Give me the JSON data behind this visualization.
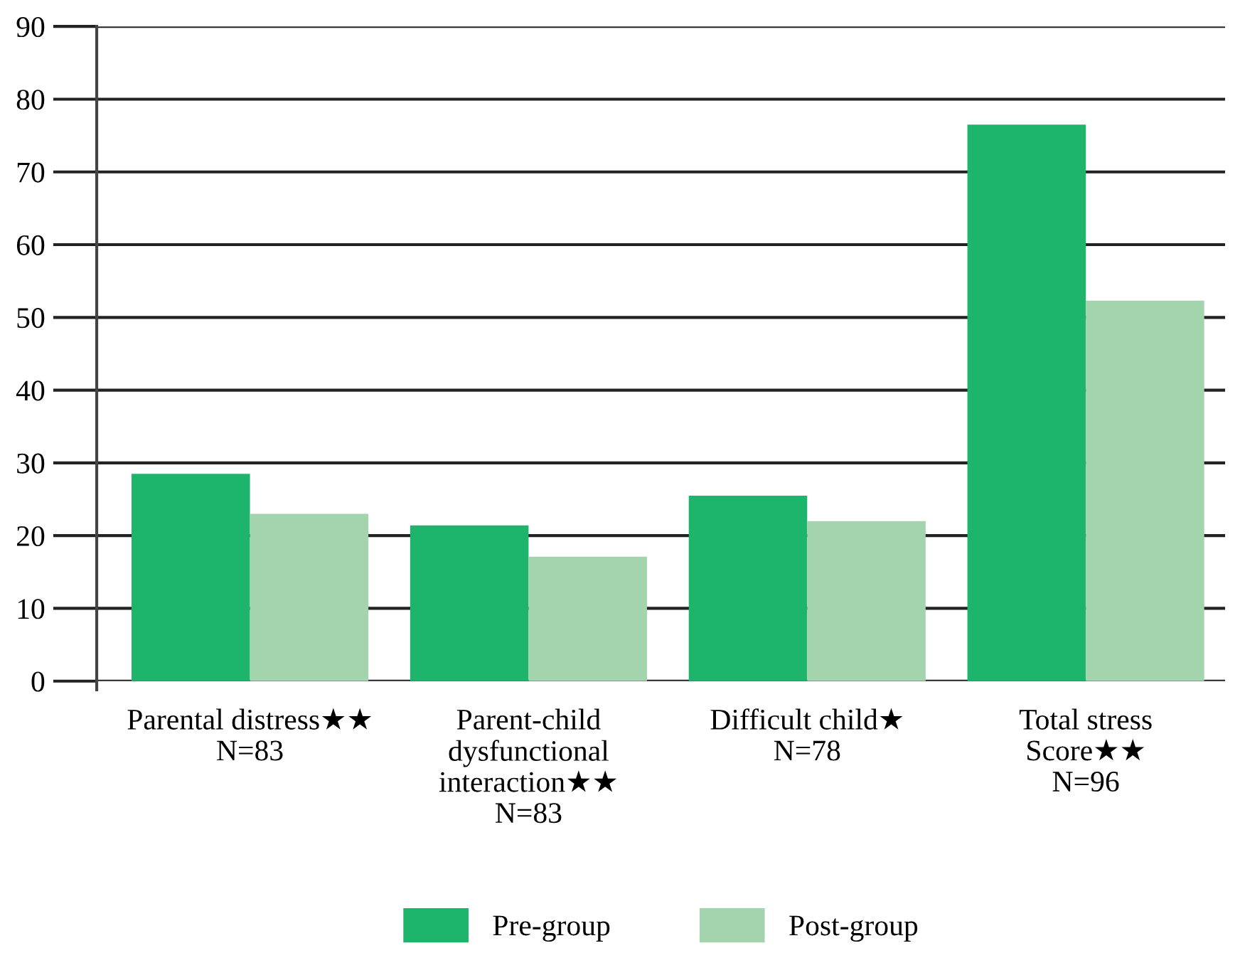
{
  "chart_data": {
    "type": "bar",
    "categories": [
      "Parental distress★★\nN=83",
      "Parent-child\ndysfunctional\ninteraction★★\nN=83",
      "Difficult child★\nN=78",
      "Total stress\nScore★★\nN=96"
    ],
    "series": [
      {
        "name": "Pre-group",
        "color": "#1db46b",
        "values": [
          28.5,
          21.4,
          25.5,
          76.5
        ]
      },
      {
        "name": "Post-group",
        "color": "#a3d4ae",
        "values": [
          23.0,
          17.1,
          22.0,
          52.3
        ]
      }
    ],
    "ylim": [
      0,
      90
    ],
    "yticks": [
      0,
      10,
      20,
      30,
      40,
      50,
      60,
      70,
      80,
      90
    ],
    "grid": "y",
    "legend": "bottom"
  }
}
